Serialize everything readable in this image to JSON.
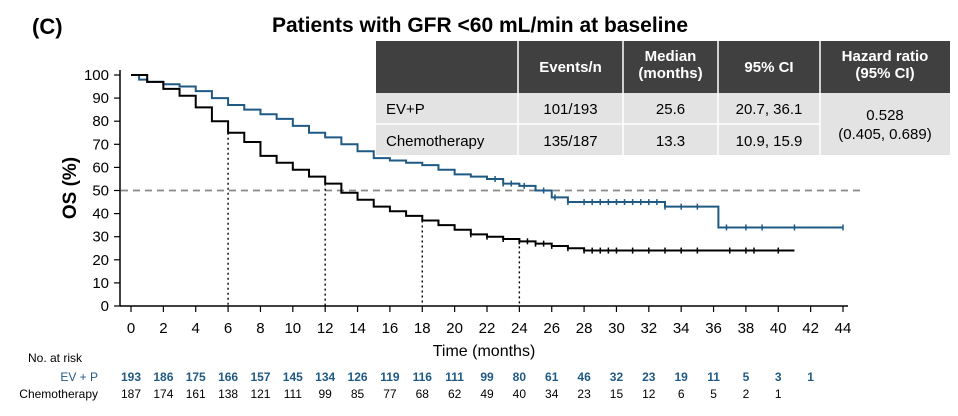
{
  "panel_label": "(C)",
  "chart_data": {
    "type": "line",
    "title": "Patients with GFR <60 mL/min at baseline",
    "xlabel": "Time (months)",
    "ylabel": "OS (%)",
    "xlim": [
      0,
      44
    ],
    "ylim": [
      0,
      100
    ],
    "x_ticks": [
      0,
      2,
      4,
      6,
      8,
      10,
      12,
      14,
      16,
      18,
      20,
      22,
      24,
      26,
      28,
      30,
      32,
      34,
      36,
      38,
      40,
      42,
      44
    ],
    "y_ticks": [
      0,
      10,
      20,
      30,
      40,
      50,
      60,
      70,
      80,
      90,
      100
    ],
    "reference_line_y": 50,
    "vertical_markers": [
      6,
      12,
      18,
      24
    ],
    "colors": {
      "ev_p": "#1f5a85",
      "chemo": "#000000",
      "table_header": "#404040",
      "table_body": "#e3e3e3"
    },
    "series": [
      {
        "key": "ev_p",
        "x": [
          0,
          0.5,
          1,
          2,
          3,
          4,
          5,
          6,
          7,
          8,
          9,
          10,
          11,
          12,
          13,
          14,
          15,
          16,
          17,
          18,
          19,
          20,
          21,
          22,
          23,
          24,
          25,
          26,
          27,
          28,
          29,
          30,
          31,
          32,
          33,
          34,
          35,
          36,
          36.3,
          38,
          40,
          42,
          44
        ],
        "y": [
          100,
          98,
          97,
          96,
          95,
          93,
          90,
          87,
          85,
          83,
          81,
          78,
          75,
          73,
          70,
          67,
          64,
          63,
          62,
          61,
          59,
          57,
          56,
          55,
          53,
          52,
          50,
          47,
          45,
          45,
          45,
          45,
          45,
          45,
          43,
          43,
          43,
          43,
          34,
          34,
          34,
          34,
          34
        ]
      },
      {
        "key": "chemo",
        "x": [
          0,
          1,
          2,
          3,
          4,
          5,
          6,
          7,
          8,
          9,
          10,
          11,
          12,
          13,
          14,
          15,
          16,
          17,
          18,
          19,
          20,
          21,
          22,
          23,
          24,
          25,
          26,
          27,
          28,
          30,
          32,
          34,
          36,
          38,
          40,
          41
        ],
        "y": [
          100,
          97,
          94,
          91,
          86,
          80,
          75,
          71,
          65,
          62,
          59,
          56,
          53,
          49,
          46,
          43,
          41,
          39,
          37,
          35,
          33,
          31,
          30,
          29,
          28,
          27,
          26,
          25,
          24,
          24,
          24,
          24,
          24,
          24,
          24,
          24
        ]
      }
    ],
    "censor_ticks": {
      "ev_p": [
        22.5,
        23,
        23.5,
        24.3,
        25.5,
        26.2,
        27,
        28,
        28.5,
        29,
        29.5,
        30,
        30.5,
        31,
        31.5,
        32,
        32.5,
        33,
        34,
        35,
        36.8,
        38,
        39,
        41,
        44
      ],
      "chemo": [
        21,
        22,
        23,
        24,
        24.5,
        25,
        25.5,
        26,
        27,
        28,
        28.5,
        29,
        29.5,
        30,
        31,
        32,
        33,
        34,
        35,
        37,
        38,
        38.5,
        40
      ]
    },
    "results_table": {
      "headers": [
        "Events/n",
        "Median\n(months)",
        "95% CI",
        "Hazard ratio\n(95% CI)"
      ],
      "rows": [
        {
          "arm": "EV+P",
          "events_n": "101/193",
          "median": "25.6",
          "ci": "20.7, 36.1"
        },
        {
          "arm": "Chemotherapy",
          "events_n": "135/187",
          "median": "13.3",
          "ci": "10.9, 15.9"
        }
      ],
      "hazard_ratio": "0.528",
      "hazard_ratio_ci": "(0.405, 0.689)"
    },
    "at_risk": {
      "title": "No. at risk",
      "ev_p_label": "EV + P",
      "chemo_label": "Chemotherapy",
      "ev_p": [
        "193",
        "186",
        "175",
        "166",
        "157",
        "145",
        "134",
        "126",
        "119",
        "116",
        "111",
        "99",
        "80",
        "61",
        "46",
        "32",
        "23",
        "19",
        "11",
        "5",
        "3",
        "1"
      ],
      "chemo": [
        "187",
        "174",
        "161",
        "138",
        "121",
        "111",
        "99",
        "85",
        "77",
        "68",
        "62",
        "49",
        "40",
        "34",
        "23",
        "15",
        "12",
        "6",
        "5",
        "2",
        "1"
      ]
    }
  }
}
